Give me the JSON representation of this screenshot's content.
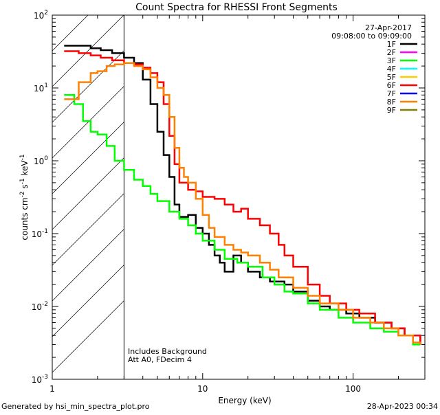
{
  "chart_data": {
    "type": "line",
    "title": "Count Spectra for RHESSI Front Segments",
    "xlabel": "Energy (keV)",
    "ylabel": "counts cm",
    "ylabel_sup1": "-2",
    "ylabel_mid": " s",
    "ylabel_sup2": "-1",
    "ylabel_mid2": " keV",
    "ylabel_sup3": "-1",
    "xscale": "log",
    "yscale": "log",
    "xlim": [
      1,
      300
    ],
    "ylim": [
      0.001,
      100
    ],
    "x_ticks": [
      {
        "v": 1,
        "label": "1"
      },
      {
        "v": 10,
        "label": "10"
      },
      {
        "v": 100,
        "label": "100"
      }
    ],
    "y_ticks": [
      {
        "v": 100,
        "base": "10",
        "exp": "2"
      },
      {
        "v": 10,
        "base": "10",
        "exp": "1"
      },
      {
        "v": 1,
        "base": "10",
        "exp": "0"
      },
      {
        "v": 0.1,
        "base": "10",
        "exp": "-1"
      },
      {
        "v": 0.01,
        "base": "10",
        "exp": "-2"
      },
      {
        "v": 0.001,
        "base": "10",
        "exp": "-3"
      }
    ],
    "shaded_region_xmax": 3,
    "info": {
      "date": "27-Apr-2017",
      "time_range": "09:08:00 to 09:09:00"
    },
    "annotations": [
      "Includes Background",
      "Att A0, FDecim 4"
    ],
    "legend": [
      {
        "name": "1F",
        "color": "#000000"
      },
      {
        "name": "2F",
        "color": "#ff00ff"
      },
      {
        "name": "3F",
        "color": "#00ff00"
      },
      {
        "name": "4F",
        "color": "#00ffff"
      },
      {
        "name": "5F",
        "color": "#ffcc00"
      },
      {
        "name": "6F",
        "color": "#ff0000"
      },
      {
        "name": "7F",
        "color": "#0000ff"
      },
      {
        "name": "8F",
        "color": "#ff8000"
      },
      {
        "name": "9F",
        "color": "#808000"
      }
    ],
    "series": [
      {
        "name": "1F",
        "color": "#000000",
        "points": [
          [
            1.2,
            38
          ],
          [
            1.5,
            38
          ],
          [
            1.8,
            35
          ],
          [
            2.1,
            33
          ],
          [
            2.5,
            30
          ],
          [
            3.0,
            26
          ],
          [
            3.5,
            22
          ],
          [
            4.0,
            13
          ],
          [
            4.5,
            6
          ],
          [
            5.0,
            2.5
          ],
          [
            5.5,
            1.2
          ],
          [
            6.0,
            0.6
          ],
          [
            6.5,
            0.25
          ],
          [
            7.0,
            0.17
          ],
          [
            8.0,
            0.18
          ],
          [
            9.0,
            0.12
          ],
          [
            10,
            0.1
          ],
          [
            11,
            0.07
          ],
          [
            12,
            0.05
          ],
          [
            13,
            0.04
          ],
          [
            14,
            0.03
          ],
          [
            16,
            0.05
          ],
          [
            18,
            0.04
          ],
          [
            20,
            0.03
          ],
          [
            24,
            0.025
          ],
          [
            28,
            0.022
          ],
          [
            35,
            0.02
          ],
          [
            40,
            0.016
          ],
          [
            50,
            0.012
          ],
          [
            60,
            0.01
          ],
          [
            70,
            0.009
          ],
          [
            90,
            0.008
          ],
          [
            110,
            0.007
          ],
          [
            140,
            0.006
          ],
          [
            180,
            0.005
          ],
          [
            220,
            0.004
          ],
          [
            280,
            0.003
          ]
        ]
      },
      {
        "name": "3F",
        "color": "#00ff00",
        "points": [
          [
            1.2,
            8
          ],
          [
            1.4,
            6
          ],
          [
            1.6,
            3.5
          ],
          [
            1.8,
            2.5
          ],
          [
            2.0,
            2.3
          ],
          [
            2.3,
            1.6
          ],
          [
            2.6,
            1.0
          ],
          [
            3.0,
            0.75
          ],
          [
            3.5,
            0.55
          ],
          [
            4.0,
            0.45
          ],
          [
            4.5,
            0.35
          ],
          [
            5.0,
            0.28
          ],
          [
            6.0,
            0.2
          ],
          [
            7.0,
            0.16
          ],
          [
            8.0,
            0.13
          ],
          [
            9.0,
            0.1
          ],
          [
            10,
            0.08
          ],
          [
            12,
            0.06
          ],
          [
            14,
            0.045
          ],
          [
            17,
            0.04
          ],
          [
            20,
            0.035
          ],
          [
            25,
            0.025
          ],
          [
            30,
            0.02
          ],
          [
            35,
            0.016
          ],
          [
            40,
            0.015
          ],
          [
            50,
            0.011
          ],
          [
            60,
            0.009
          ],
          [
            80,
            0.007
          ],
          [
            100,
            0.006
          ],
          [
            130,
            0.005
          ],
          [
            160,
            0.0045
          ],
          [
            200,
            0.004
          ],
          [
            250,
            0.003
          ],
          [
            280,
            0.003
          ]
        ]
      },
      {
        "name": "6F",
        "color": "#ff0000",
        "points": [
          [
            1.2,
            32
          ],
          [
            1.5,
            30
          ],
          [
            1.8,
            28
          ],
          [
            2.1,
            26
          ],
          [
            2.5,
            24
          ],
          [
            3.0,
            22
          ],
          [
            3.5,
            21
          ],
          [
            4.0,
            19
          ],
          [
            4.5,
            16
          ],
          [
            5.0,
            12
          ],
          [
            5.5,
            6
          ],
          [
            6.0,
            2.2
          ],
          [
            6.5,
            0.9
          ],
          [
            7.0,
            0.5
          ],
          [
            8.0,
            0.4
          ],
          [
            9.0,
            0.38
          ],
          [
            10,
            0.32
          ],
          [
            12,
            0.3
          ],
          [
            14,
            0.25
          ],
          [
            16,
            0.2
          ],
          [
            18,
            0.22
          ],
          [
            20,
            0.16
          ],
          [
            24,
            0.13
          ],
          [
            28,
            0.1
          ],
          [
            32,
            0.07
          ],
          [
            35,
            0.05
          ],
          [
            40,
            0.035
          ],
          [
            50,
            0.02
          ],
          [
            60,
            0.014
          ],
          [
            70,
            0.011
          ],
          [
            90,
            0.009
          ],
          [
            110,
            0.008
          ],
          [
            140,
            0.006
          ],
          [
            180,
            0.005
          ],
          [
            220,
            0.004
          ],
          [
            280,
            0.003
          ]
        ]
      },
      {
        "name": "8F",
        "color": "#ff8000",
        "points": [
          [
            1.2,
            7
          ],
          [
            1.4,
            7
          ],
          [
            1.5,
            12
          ],
          [
            1.7,
            12
          ],
          [
            1.8,
            16
          ],
          [
            2.0,
            17
          ],
          [
            2.3,
            20
          ],
          [
            2.6,
            21
          ],
          [
            3.0,
            22
          ],
          [
            3.5,
            20
          ],
          [
            4.0,
            18
          ],
          [
            4.5,
            14
          ],
          [
            5.0,
            10
          ],
          [
            5.5,
            8
          ],
          [
            6.0,
            4
          ],
          [
            6.5,
            1.5
          ],
          [
            7.0,
            0.8
          ],
          [
            7.5,
            0.6
          ],
          [
            8.0,
            0.5
          ],
          [
            9.0,
            0.3
          ],
          [
            10,
            0.18
          ],
          [
            11,
            0.12
          ],
          [
            12,
            0.09
          ],
          [
            14,
            0.07
          ],
          [
            16,
            0.06
          ],
          [
            18,
            0.055
          ],
          [
            20,
            0.05
          ],
          [
            24,
            0.04
          ],
          [
            28,
            0.032
          ],
          [
            32,
            0.025
          ],
          [
            40,
            0.018
          ],
          [
            50,
            0.014
          ],
          [
            60,
            0.011
          ],
          [
            80,
            0.009
          ],
          [
            100,
            0.007
          ],
          [
            130,
            0.006
          ],
          [
            160,
            0.005
          ],
          [
            200,
            0.004
          ],
          [
            250,
            0.0032
          ],
          [
            280,
            0.003
          ]
        ]
      }
    ]
  },
  "footer": {
    "generated_by": "Generated by hsi_min_spectra_plot.pro",
    "timestamp": "28-Apr-2023 00:34"
  }
}
